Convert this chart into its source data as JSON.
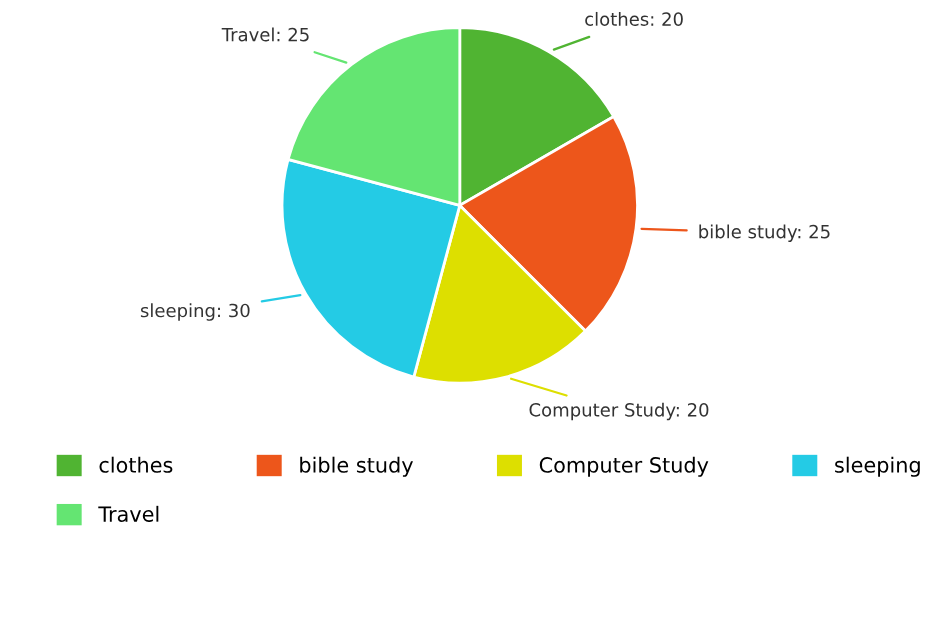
{
  "chart_data": {
    "type": "pie",
    "categories": [
      "clothes",
      "bible study",
      "Computer Study",
      "sleeping",
      "Travel"
    ],
    "values": [
      20,
      25,
      20,
      30,
      25
    ],
    "colors": [
      "#50b432",
      "#ed561b",
      "#dddf00",
      "#24cbe5",
      "#64e572"
    ],
    "value_labels": [
      "clothes: 20",
      "bible study: 25",
      "Computer Study: 20",
      "sleeping: 30",
      "Travel: 25"
    ],
    "legend": "bottom"
  }
}
